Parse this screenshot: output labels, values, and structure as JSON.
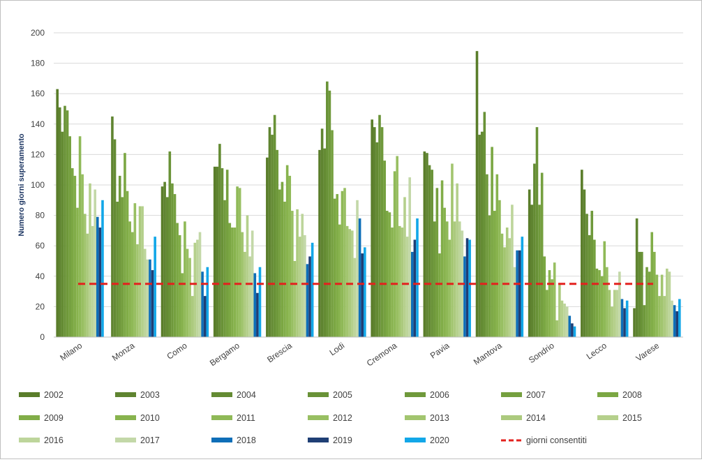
{
  "chart_data": {
    "type": "bar",
    "title": "",
    "xlabel": "",
    "ylabel": "Numero giorni superamento",
    "ylim": [
      0,
      200
    ],
    "yticks": [
      0,
      20,
      40,
      60,
      80,
      100,
      120,
      140,
      160,
      180,
      200
    ],
    "grid": true,
    "legend_position": "bottom",
    "categories": [
      "Milano",
      "Monza",
      "Como",
      "Bergamo",
      "Brescia",
      "Lodi",
      "Cremona",
      "Pavia",
      "Mantova",
      "Sondrio",
      "Lecco",
      "Varese"
    ],
    "series": [
      {
        "name": "2002",
        "color": "#5a7d2a",
        "values": [
          163,
          0,
          99,
          112,
          118,
          123,
          143,
          122,
          188,
          97,
          110,
          19
        ]
      },
      {
        "name": "2003",
        "color": "#5f8430",
        "values": [
          151,
          145,
          102,
          112,
          138,
          137,
          138,
          121,
          133,
          87,
          97,
          78
        ]
      },
      {
        "name": "2004",
        "color": "#648b33",
        "values": [
          135,
          130,
          92,
          127,
          133,
          124,
          128,
          113,
          135,
          114,
          81,
          56
        ]
      },
      {
        "name": "2005",
        "color": "#699237",
        "values": [
          152,
          89,
          122,
          111,
          146,
          168,
          146,
          110,
          148,
          138,
          67,
          56
        ]
      },
      {
        "name": "2006",
        "color": "#6f993b",
        "values": [
          149,
          106,
          101,
          90,
          123,
          162,
          138,
          76,
          107,
          87,
          83,
          21
        ]
      },
      {
        "name": "2007",
        "color": "#75a03f",
        "values": [
          132,
          92,
          94,
          110,
          97,
          136,
          116,
          98,
          80,
          108,
          64,
          46
        ]
      },
      {
        "name": "2008",
        "color": "#7ba743",
        "values": [
          111,
          121,
          75,
          75,
          102,
          91,
          83,
          55,
          125,
          53,
          45,
          43
        ]
      },
      {
        "name": "2009",
        "color": "#81ad48",
        "values": [
          106,
          96,
          67,
          72,
          89,
          94,
          82,
          103,
          83,
          31,
          44,
          69
        ]
      },
      {
        "name": "2010",
        "color": "#88b34e",
        "values": [
          85,
          76,
          42,
          72,
          113,
          74,
          72,
          85,
          107,
          44,
          40,
          56
        ]
      },
      {
        "name": "2011",
        "color": "#8fb957",
        "values": [
          132,
          69,
          76,
          99,
          106,
          96,
          109,
          76,
          90,
          38,
          63,
          41
        ]
      },
      {
        "name": "2012",
        "color": "#98bf62",
        "values": [
          107,
          88,
          58,
          98,
          83,
          98,
          119,
          64,
          68,
          49,
          46,
          27
        ]
      },
      {
        "name": "2013",
        "color": "#a2c56f",
        "values": [
          81,
          61,
          52,
          69,
          50,
          73,
          73,
          114,
          59,
          11,
          31,
          41
        ]
      },
      {
        "name": "2014",
        "color": "#acca7e",
        "values": [
          68,
          86,
          27,
          56,
          84,
          71,
          72,
          76,
          72,
          35,
          20,
          27
        ]
      },
      {
        "name": "2015",
        "color": "#b5d08c",
        "values": [
          101,
          86,
          62,
          80,
          66,
          70,
          92,
          101,
          65,
          24,
          31,
          45
        ]
      },
      {
        "name": "2016",
        "color": "#bdd59b",
        "values": [
          73,
          58,
          64,
          53,
          81,
          52,
          66,
          76,
          87,
          22,
          31,
          43
        ]
      },
      {
        "name": "2017",
        "color": "#c3d8a8",
        "values": [
          97,
          51,
          69,
          70,
          67,
          90,
          105,
          70,
          46,
          20,
          43,
          24
        ]
      },
      {
        "name": "2018",
        "color": "#0e6eb8",
        "values": [
          79,
          51,
          43,
          42,
          48,
          78,
          56,
          53,
          57,
          14,
          25,
          21
        ]
      },
      {
        "name": "2019",
        "color": "#1f3f75",
        "values": [
          72,
          44,
          27,
          29,
          53,
          55,
          64,
          65,
          57,
          9,
          19,
          17
        ]
      },
      {
        "name": "2020",
        "color": "#12a7e8",
        "values": [
          90,
          66,
          46,
          46,
          62,
          59,
          78,
          64,
          66,
          7,
          24,
          25
        ]
      }
    ],
    "reference_line": {
      "name": "giorni consentiti",
      "value": 35,
      "color": "#e3211e",
      "style": "dashed"
    }
  }
}
